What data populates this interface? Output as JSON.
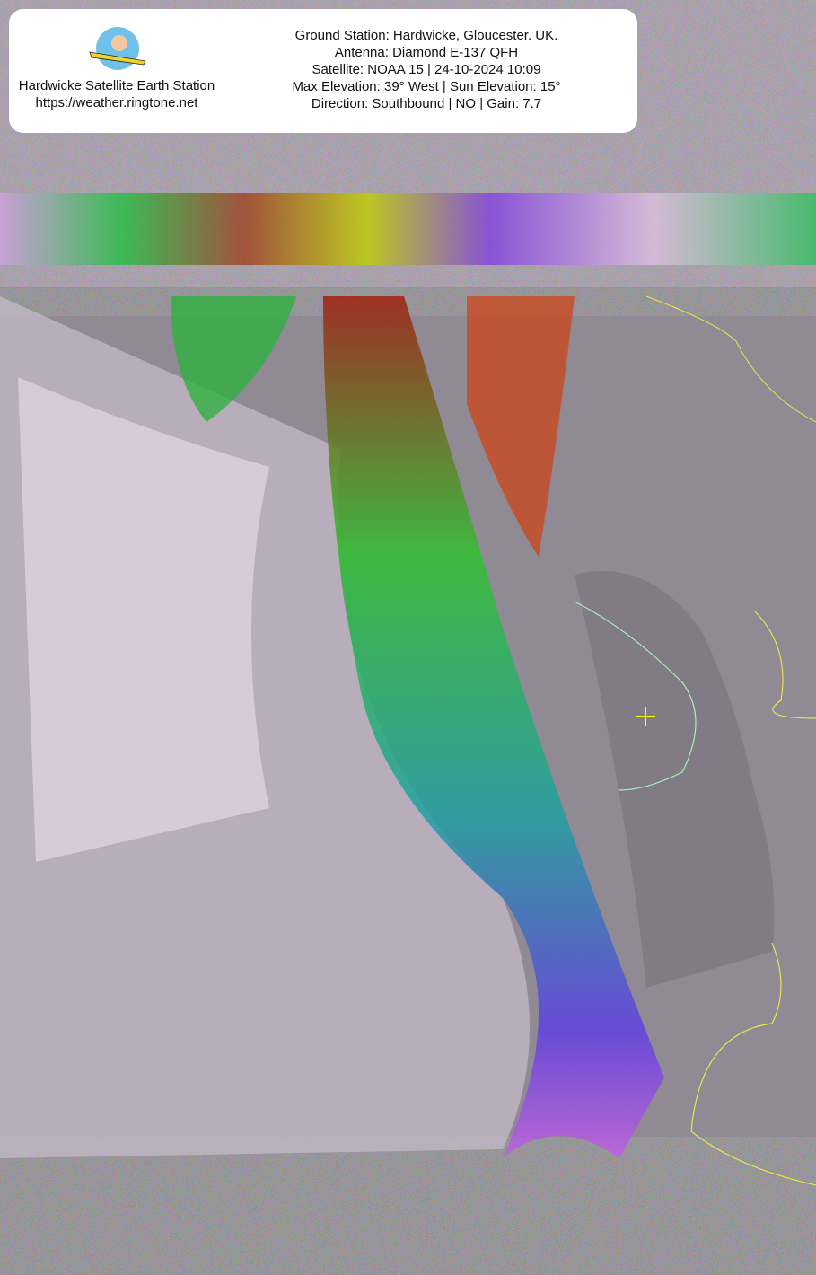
{
  "header": {
    "station_name": "Hardwicke Satellite Earth Station",
    "url": "https://weather.ringtone.net",
    "logo": "plane-pilot-logo",
    "lines": [
      "Ground Station: Hardwicke, Gloucester. UK.",
      "Antenna: Diamond E-137 QFH",
      "Satellite: NOAA 15 | 24-10-2024 10:09",
      "Max Elevation: 39° West | Sun Elevation: 15°",
      "Direction: Southbound | NO | Gain: 7.7"
    ]
  },
  "image": {
    "type": "NOAA APT false-colour infrared satellite image",
    "ground_station_marker": "crosshair",
    "colors": {
      "marker": "#ffff00",
      "coastline": "#a8f0b8",
      "border": "#e6e64a",
      "cloud_low": "#f0e0f0",
      "sea": "#8f8a92"
    }
  }
}
